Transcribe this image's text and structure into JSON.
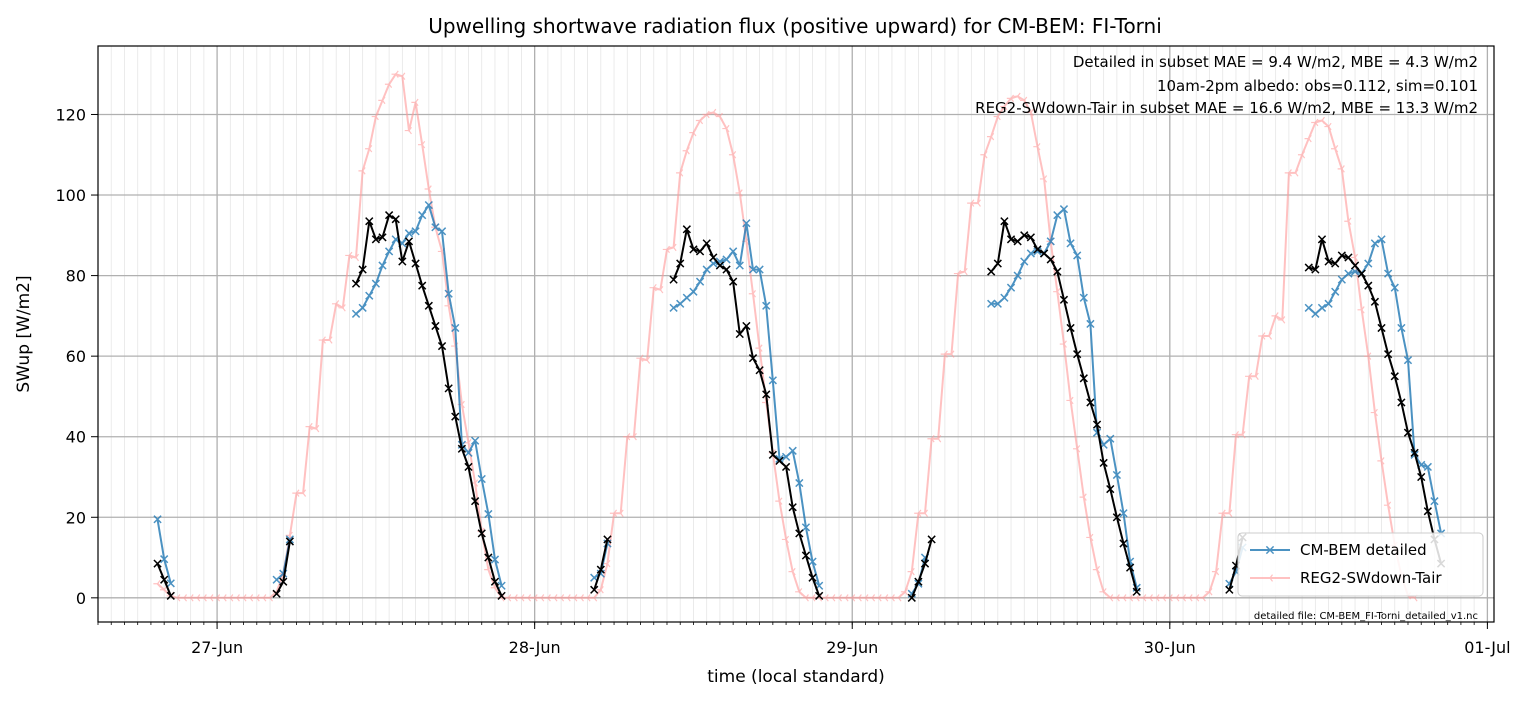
{
  "chart_data": {
    "type": "line",
    "title": "Upwelling shortwave radiation flux (positive upward) for CM-BEM: FI-Torni",
    "xlabel": "time (local standard)",
    "ylabel": "SWup [W/m2]",
    "xlim": [
      "2024-06-26T15:00",
      "2024-07-01T00:30"
    ],
    "ylim": [
      -6,
      137
    ],
    "yticks": [
      0,
      20,
      40,
      60,
      80,
      100,
      120
    ],
    "xticks": [
      {
        "t": "2024-06-27T00:00",
        "label": "27-Jun"
      },
      {
        "t": "2024-06-28T00:00",
        "label": "28-Jun"
      },
      {
        "t": "2024-06-29T00:00",
        "label": "29-Jun"
      },
      {
        "t": "2024-06-30T00:00",
        "label": "30-Jun"
      },
      {
        "t": "2024-07-01T00:00",
        "label": "01-Jul"
      }
    ],
    "grid": true,
    "legend_position": "lower right",
    "annotations": [
      {
        "text": "Detailed in subset MAE = 9.4 W/m2, MBE = 4.3 W/m2",
        "color": "#1f77b4"
      },
      {
        "text": "10am-2pm albedo: obs=0.112, sim=0.101",
        "color": "#000000"
      },
      {
        "text": "REG2-SWdown-Tair in subset MAE = 16.6 W/m2, MBE = 13.3 W/m2",
        "color": "#ff0000"
      }
    ],
    "footnote": "detailed file: CM-BEM_FI-Torni_detailed_v1.nc",
    "series": [
      {
        "name": "CM-BEM detailed",
        "color": "#1f77b4",
        "marker": "x",
        "segments": [
          {
            "start": "2024-06-26T19:30",
            "values": [
              19.5,
              9.6,
              3.6
            ]
          },
          {
            "start": "2024-06-27T04:30",
            "values": [
              4.5,
              6.0,
              14.5
            ]
          },
          {
            "start": "2024-06-27T10:30",
            "values": [
              70.5,
              72.0,
              75.0,
              78.0,
              82.5,
              86.0,
              89.0,
              88.0,
              90.5,
              91.0,
              95.0,
              97.5,
              92.0,
              91.0,
              75.5,
              67.0,
              38.0,
              36.0,
              39.0,
              29.5,
              20.8,
              9.5,
              3.0
            ]
          },
          {
            "start": "2024-06-28T04:30",
            "values": [
              5.0,
              6.0,
              13.5
            ]
          },
          {
            "start": "2024-06-28T10:30",
            "values": [
              72.0,
              73.0,
              74.5,
              76.0,
              78.5,
              81.5,
              83.0,
              83.5,
              84.0,
              86.0,
              82.5,
              93.0,
              81.5,
              81.5,
              72.5,
              54.0,
              34.5,
              35.0,
              36.5,
              28.5,
              17.5,
              9.0,
              3.0
            ]
          },
          {
            "start": "2024-06-29T04:30",
            "values": [
              1.0,
              3.5,
              10.0
            ]
          },
          {
            "start": "2024-06-29T10:30",
            "values": [
              73.0,
              73.0,
              74.5,
              77.0,
              80.0,
              83.5,
              85.5,
              86.0,
              85.5,
              88.5,
              95.0,
              96.5,
              88.0,
              85.0,
              74.5,
              68.0,
              41.0,
              38.0,
              39.5,
              30.5,
              21.0,
              9.0,
              2.5
            ]
          },
          {
            "start": "2024-06-30T04:30",
            "values": [
              3.5,
              6.5,
              12.5
            ]
          },
          {
            "start": "2024-06-30T10:30",
            "values": [
              72.0,
              70.5,
              72.0,
              73.0,
              76.0,
              79.0,
              80.5,
              81.0,
              80.5,
              83.0,
              88.0,
              89.0,
              80.5,
              77.0,
              67.0,
              59.0,
              35.5,
              33.0,
              32.5,
              24.0,
              16.0
            ]
          }
        ]
      },
      {
        "name": "REG2-SWdown-Tair",
        "color": "#ff9999",
        "marker": "tri",
        "segments": [
          {
            "start": "2024-06-26T19:30",
            "values": [
              3.5,
              2.0,
              0.5,
              0,
              0,
              0,
              0,
              0,
              0,
              0,
              0,
              0,
              0,
              0,
              0,
              0,
              0,
              0,
              1.5,
              6.0,
              15.5,
              26.0,
              26.0,
              42.5,
              42.0,
              64.0,
              64.0,
              73.0,
              72.0,
              85.0,
              84.5,
              106.0,
              111.5,
              119.5,
              123.5,
              127.5,
              130.0,
              129.5,
              116.0,
              123.0,
              112.5,
              101.5,
              92.0,
              86.0,
              72.5,
              62.5,
              48.0,
              38.5,
              28.5,
              16.5,
              7.0,
              2.5,
              0,
              0,
              0,
              0,
              0,
              0,
              0,
              0,
              0,
              0,
              0,
              0,
              0,
              0,
              0,
              2.0,
              8.5,
              21.0,
              21.0,
              40.0,
              40.0,
              59.5,
              59.0,
              77.0,
              76.5,
              86.5,
              87.0,
              105.5,
              111.0,
              115.5,
              118.5,
              120.0,
              120.5,
              119.5,
              116.5,
              110.0,
              100.5,
              88.5,
              75.5,
              62.0,
              48.5,
              36.0,
              24.0,
              14.5,
              6.5,
              1.5,
              0,
              0,
              0,
              0,
              0,
              0,
              0,
              0,
              0,
              0,
              0,
              0,
              0,
              0,
              0,
              1.5,
              6.5,
              21.0,
              21.0,
              39.5,
              39.5,
              60.5,
              60.5,
              80.5,
              81.0,
              98.0,
              98.0,
              110.0,
              114.5,
              119.5,
              122.0,
              124.0,
              124.5,
              123.5,
              120.5,
              112.0,
              104.0,
              88.5,
              76.0,
              63.0,
              49.0,
              37.0,
              25.0,
              15.0,
              7.0,
              1.5,
              0,
              0,
              0,
              0,
              0,
              0,
              0,
              0,
              0,
              0,
              0,
              0,
              0,
              0,
              0,
              1.5,
              6.5,
              21.0,
              21.0,
              40.5,
              40.5,
              55.0,
              55.0,
              65.0,
              65.0,
              70.0,
              69.0,
              105.5,
              105.5,
              110.0,
              114.0,
              118.0,
              118.5,
              117.0,
              111.5,
              106.5,
              93.5,
              84.5,
              71.5,
              60.0,
              46.0,
              34.0,
              23.0,
              13.0,
              5.5,
              0.5,
              0
            ]
          }
        ]
      },
      {
        "name": "",
        "color": "#000000",
        "marker": "x",
        "segments": [
          {
            "start": "2024-06-26T19:30",
            "values": [
              8.5,
              4.5,
              0.5
            ]
          },
          {
            "start": "2024-06-27T04:30",
            "values": [
              1.0,
              4.0,
              14.0
            ]
          },
          {
            "start": "2024-06-27T10:30",
            "values": [
              78.0,
              81.5,
              93.5,
              89.0,
              89.5,
              95.0,
              94.0,
              83.5,
              88.5,
              83.0,
              77.5,
              72.5,
              67.5,
              62.5,
              52.0,
              45.0,
              37.0,
              32.5,
              24.0,
              16.0,
              10.0,
              4.0,
              0.5
            ]
          },
          {
            "start": "2024-06-28T04:30",
            "values": [
              2.0,
              7.0,
              14.5
            ]
          },
          {
            "start": "2024-06-28T10:30",
            "values": [
              79.0,
              83.0,
              91.5,
              86.5,
              86.0,
              88.0,
              84.5,
              82.5,
              81.5,
              78.5,
              65.5,
              67.5,
              59.5,
              56.5,
              50.5,
              35.5,
              34.0,
              32.5,
              22.5,
              16.0,
              10.5,
              5.0,
              0.5
            ]
          },
          {
            "start": "2024-06-29T04:30",
            "values": [
              0.0,
              4.0,
              8.5,
              14.5
            ]
          },
          {
            "start": "2024-06-29T10:30",
            "values": [
              81.0,
              83.0,
              93.5,
              89.0,
              88.5,
              90.0,
              89.5,
              86.5,
              85.5,
              84.0,
              81.0,
              74.0,
              67.0,
              60.5,
              54.5,
              48.5,
              43.0,
              33.5,
              27.0,
              20.0,
              13.5,
              7.5,
              1.5
            ]
          },
          {
            "start": "2024-06-30T04:30",
            "values": [
              2.0,
              8.0,
              15.0
            ]
          },
          {
            "start": "2024-06-30T10:30",
            "values": [
              82.0,
              81.5,
              89.0,
              83.5,
              83.0,
              85.0,
              84.5,
              82.5,
              80.5,
              77.5,
              73.5,
              67.0,
              60.5,
              55.0,
              48.5,
              41.0,
              36.0,
              30.0,
              21.5,
              14.5,
              8.5
            ]
          }
        ]
      }
    ]
  }
}
